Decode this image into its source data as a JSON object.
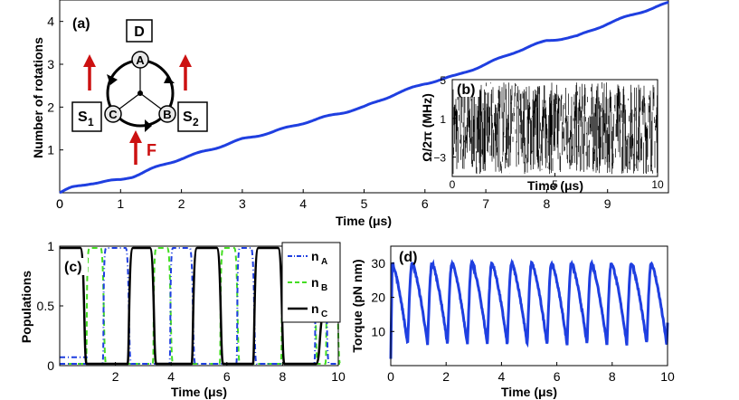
{
  "panels": {
    "a": "(a)",
    "b": "(b)",
    "c": "(c)",
    "d": "(d)"
  },
  "colors": {
    "blue": "#1f3fe0",
    "green": "#44dd22",
    "black": "#000000",
    "red": "#cc1111"
  },
  "schematic": {
    "box_top": "D",
    "box_left_main": "S",
    "box_left_sub": "1",
    "box_right_main": "S",
    "box_right_sub": "2",
    "node_a": "A",
    "node_b": "B",
    "node_c": "C",
    "force_label": "F",
    "icons": [
      "up-arrow-icon",
      "up-arrow-icon",
      "up-arrow-icon",
      "circular-arrow-icon"
    ]
  },
  "chart_data": [
    {
      "id": "a",
      "type": "line",
      "xlabel": "Time (μs)",
      "ylabel": "Number of rotations",
      "xlim": [
        0,
        10
      ],
      "ylim": [
        0,
        4.5
      ],
      "xticks": [
        0,
        1,
        2,
        3,
        4,
        5,
        6,
        7,
        8,
        9
      ],
      "yticks": [
        1,
        2,
        3,
        4
      ],
      "grid": false,
      "series": [
        {
          "color": "#1f3fe0",
          "x": [
            0,
            0.2,
            0.5,
            0.8,
            1.0,
            1.2,
            1.5,
            2.0,
            2.5,
            3.0,
            3.5,
            4.0,
            4.5,
            5.0,
            5.5,
            6.0,
            6.5,
            7.0,
            7.5,
            8.0,
            8.5,
            9.0,
            9.5,
            10.0
          ],
          "y": [
            0,
            0.12,
            0.22,
            0.27,
            0.3,
            0.38,
            0.55,
            0.8,
            1.02,
            1.25,
            1.42,
            1.63,
            1.82,
            2.0,
            2.3,
            2.55,
            2.73,
            3.0,
            3.3,
            3.55,
            3.65,
            3.95,
            4.2,
            4.43
          ]
        }
      ]
    },
    {
      "id": "b",
      "type": "line",
      "xlabel": "Time (μs)",
      "ylabel": "Ω/2π (MHz)",
      "xlim": [
        0,
        10
      ],
      "ylim": [
        -5,
        5
      ],
      "xticks": [
        0,
        5,
        10
      ],
      "yticks": [
        -3,
        1,
        5
      ],
      "ytick_labels": [
        "−3",
        "1",
        "5"
      ],
      "noise": {
        "mean": 0,
        "amplitude": 5
      },
      "series": [
        {
          "color": "#000000"
        }
      ]
    },
    {
      "id": "c",
      "type": "line",
      "xlabel": "Time (μs)",
      "ylabel": "Populations",
      "xlim": [
        0,
        10
      ],
      "ylim": [
        0,
        1
      ],
      "xticks": [
        2,
        4,
        6,
        8,
        10
      ],
      "yticks": [
        0,
        0.5,
        1
      ],
      "legend": {
        "placement": "top-right",
        "entries": [
          {
            "main": "n",
            "sub": "A",
            "color": "#1f3fe0",
            "dash": "dashdot"
          },
          {
            "main": "n",
            "sub": "B",
            "color": "#44dd22",
            "dash": "dashed"
          },
          {
            "main": "n",
            "sub": "C",
            "color": "#000000",
            "dash": "solid"
          }
        ]
      },
      "series_C_high_intervals": [
        [
          0,
          0.9
        ],
        [
          2.5,
          3.4
        ],
        [
          4.8,
          5.8
        ],
        [
          7.0,
          8.0
        ]
      ]
    },
    {
      "id": "d",
      "type": "line",
      "xlabel": "Time (μs)",
      "ylabel": "Torque (pN nm)",
      "xlim": [
        0,
        10
      ],
      "ylim": [
        0,
        35
      ],
      "xticks": [
        0,
        2,
        4,
        6,
        8,
        10
      ],
      "yticks": [
        10,
        20,
        30
      ],
      "series": [
        {
          "color": "#1f3fe0",
          "period_us": 0.72,
          "ymax": 30,
          "ymin": 6
        }
      ]
    }
  ]
}
